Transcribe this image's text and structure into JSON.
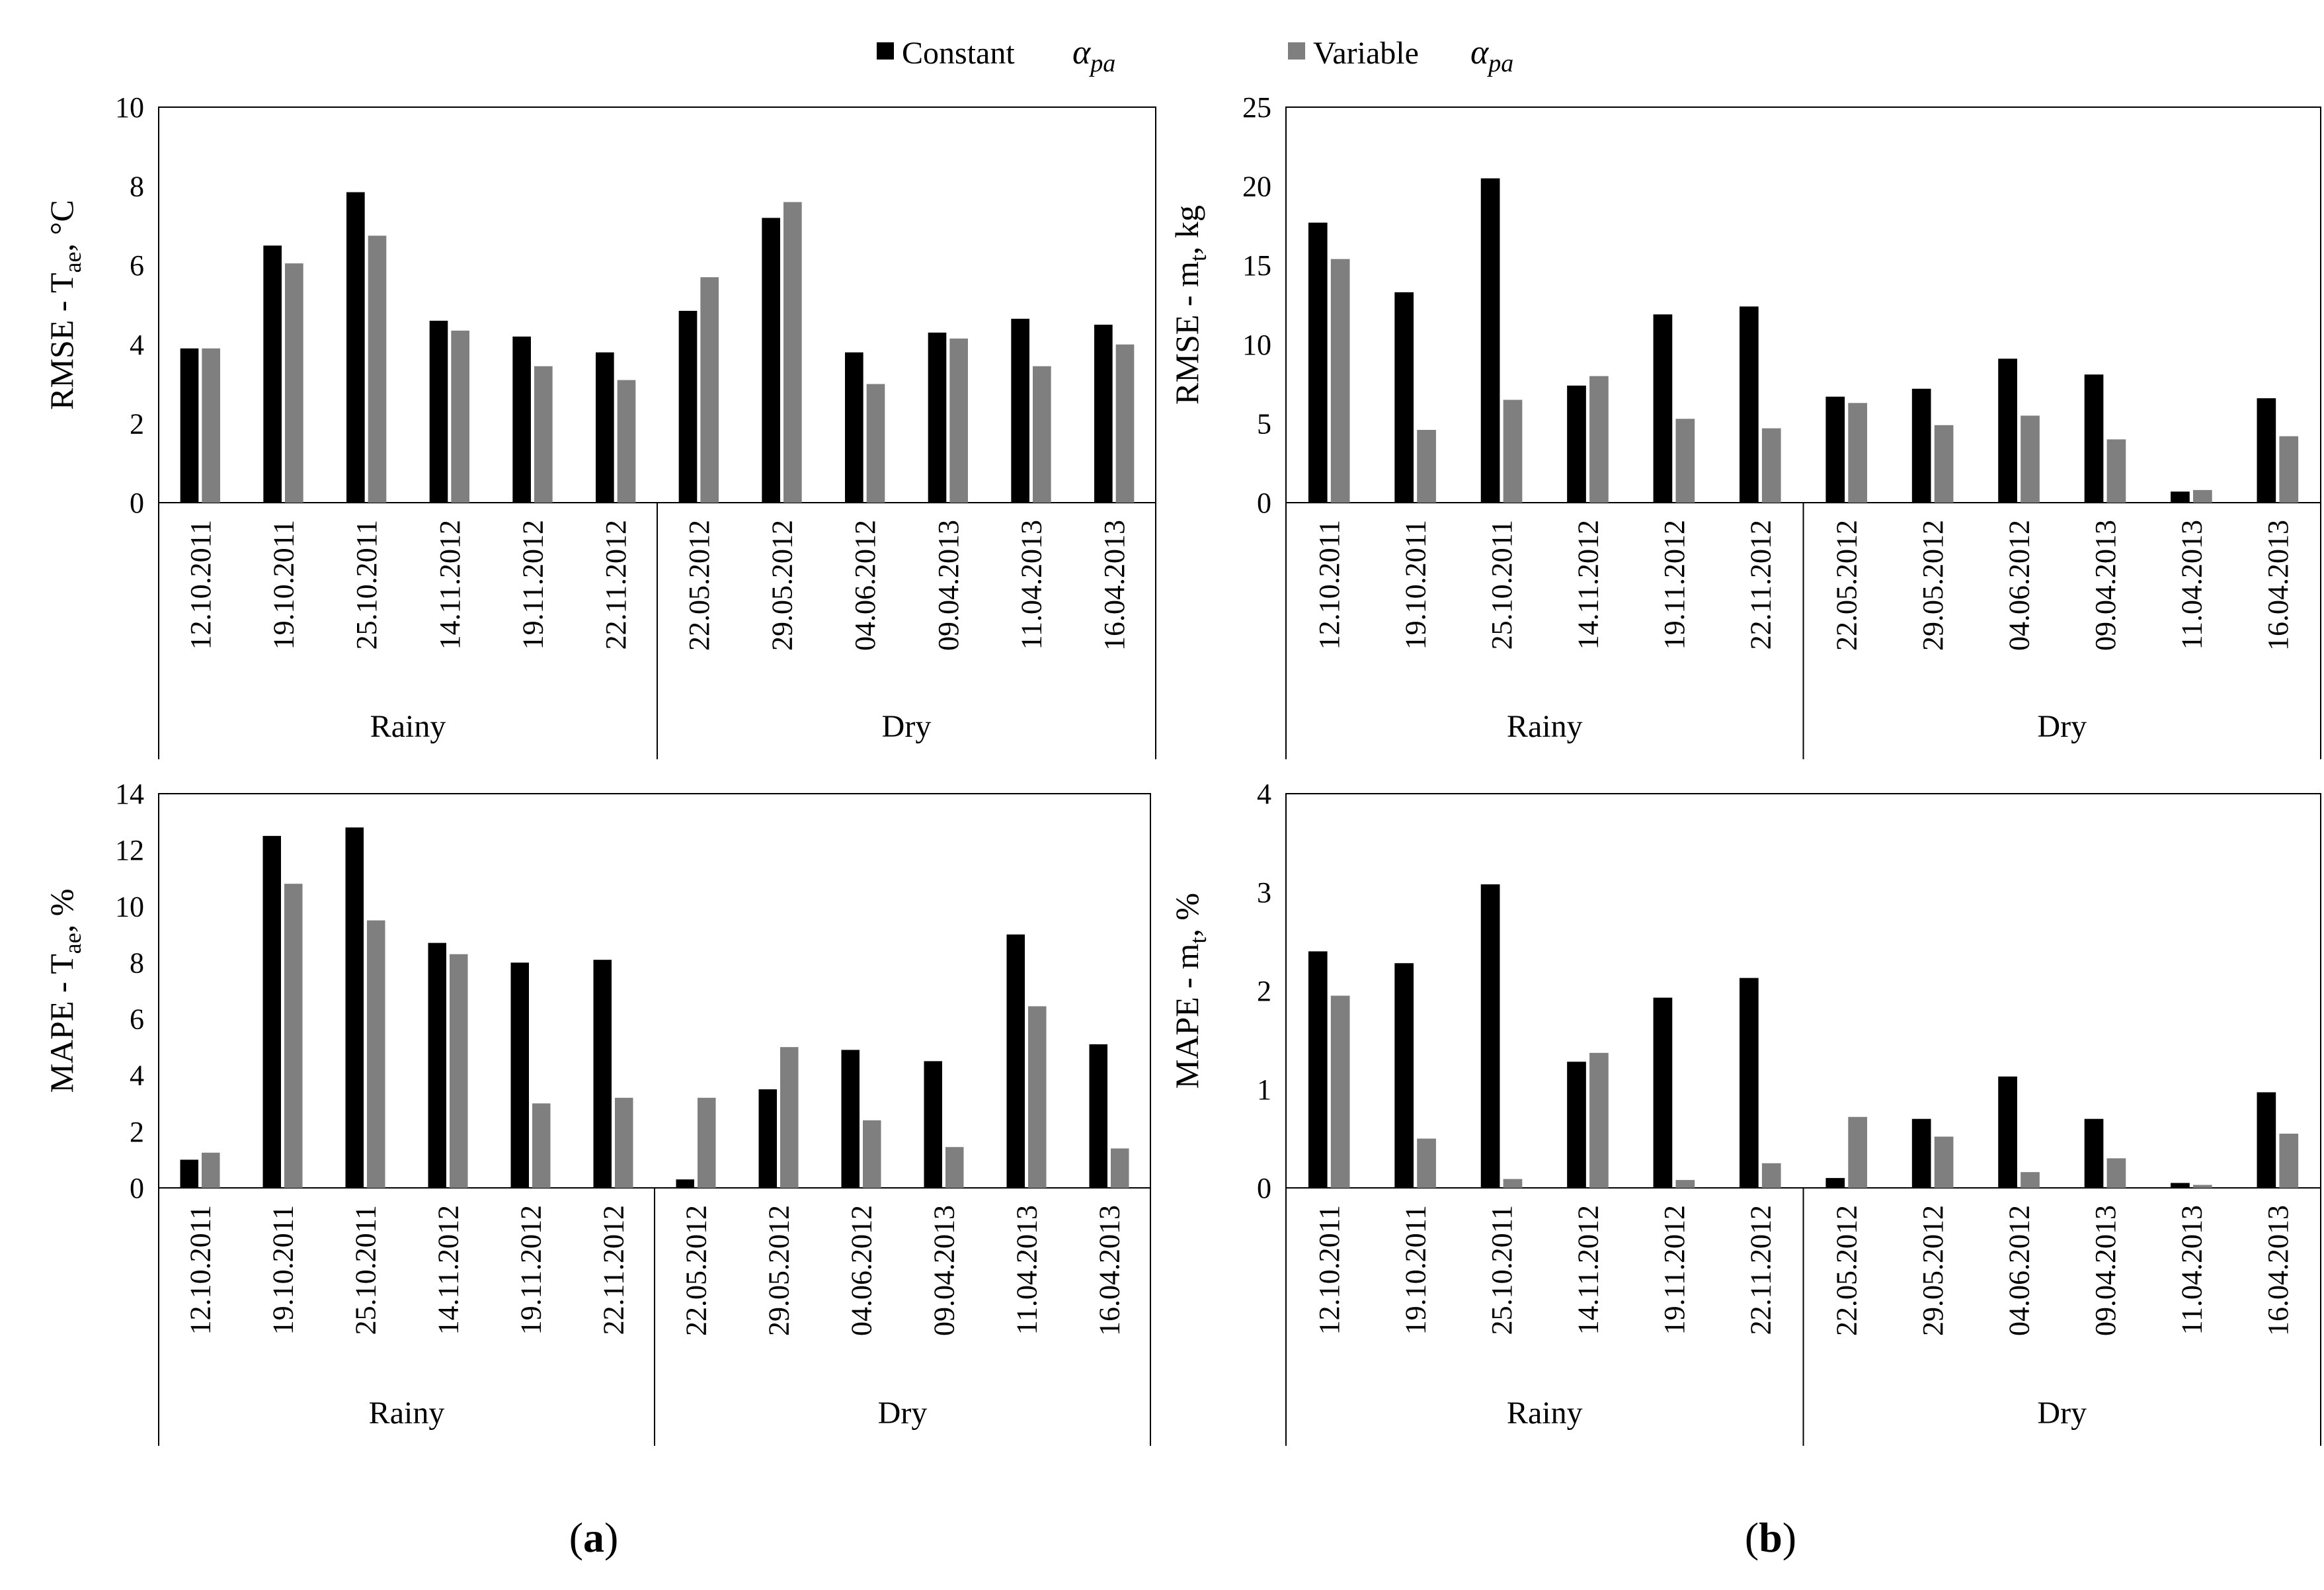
{
  "figure": {
    "legend": {
      "series": [
        {
          "label": "Constant",
          "symbol": "α",
          "subscript": "pa",
          "color": "#000000"
        },
        {
          "label": "Variable",
          "symbol": "α",
          "subscript": "pa",
          "color": "#7f7f7f"
        }
      ]
    },
    "panel_labels": [
      {
        "open": "(",
        "letter": "a",
        "close": ")"
      },
      {
        "open": "(",
        "letter": "b",
        "close": ")"
      }
    ]
  },
  "chart_data": [
    {
      "type": "bar",
      "id": "rmse-tae",
      "ylabel": {
        "main": "RMSE - T",
        "sub": "ae",
        "rest": ", °C"
      },
      "ylim": [
        0,
        10
      ],
      "yticks": [
        0,
        2,
        4,
        6,
        8,
        10
      ],
      "categories": [
        "12.10.2011",
        "19.10.2011",
        "25.10.2011",
        "14.11.2012",
        "19.11.2012",
        "22.11.2012",
        "22.05.2012",
        "29.05.2012",
        "04.06.2012",
        "09.04.2013",
        "11.04.2013",
        "16.04.2013"
      ],
      "groups": [
        {
          "label": "Rainy",
          "count": 6
        },
        {
          "label": "Dry",
          "count": 6
        }
      ],
      "series": [
        {
          "name": "Constant",
          "values": [
            3.9,
            6.5,
            7.85,
            4.6,
            4.2,
            3.8,
            4.85,
            7.2,
            3.8,
            4.3,
            4.65,
            4.5
          ]
        },
        {
          "name": "Variable",
          "values": [
            3.9,
            6.05,
            6.75,
            4.35,
            3.45,
            3.1,
            5.7,
            7.6,
            3.0,
            4.15,
            3.45,
            4.0
          ]
        }
      ]
    },
    {
      "type": "bar",
      "id": "rmse-mt",
      "ylabel": {
        "main": "RMSE - m",
        "sub": "t",
        "rest": ", kg"
      },
      "ylim": [
        0,
        25
      ],
      "yticks": [
        0,
        5,
        10,
        15,
        20,
        25
      ],
      "categories": [
        "12.10.2011",
        "19.10.2011",
        "25.10.2011",
        "14.11.2012",
        "19.11.2012",
        "22.11.2012",
        "22.05.2012",
        "29.05.2012",
        "04.06.2012",
        "09.04.2013",
        "11.04.2013",
        "16.04.2013"
      ],
      "groups": [
        {
          "label": "Rainy",
          "count": 6
        },
        {
          "label": "Dry",
          "count": 6
        }
      ],
      "series": [
        {
          "name": "Constant",
          "values": [
            17.7,
            13.3,
            20.5,
            7.4,
            11.9,
            12.4,
            6.7,
            7.2,
            9.1,
            8.1,
            0.7,
            6.6
          ]
        },
        {
          "name": "Variable",
          "values": [
            15.4,
            4.6,
            6.5,
            8.0,
            5.3,
            4.7,
            6.3,
            4.9,
            5.5,
            4.0,
            0.8,
            4.2
          ]
        }
      ]
    },
    {
      "type": "bar",
      "id": "mape-tae",
      "ylabel": {
        "main": "MAPE - T",
        "sub": "ae",
        "rest": ", %"
      },
      "ylim": [
        0,
        14
      ],
      "yticks": [
        0,
        2,
        4,
        6,
        8,
        10,
        12,
        14
      ],
      "categories": [
        "12.10.2011",
        "19.10.2011",
        "25.10.2011",
        "14.11.2012",
        "19.11.2012",
        "22.11.2012",
        "22.05.2012",
        "29.05.2012",
        "04.06.2012",
        "09.04.2013",
        "11.04.2013",
        "16.04.2013"
      ],
      "groups": [
        {
          "label": "Rainy",
          "count": 6
        },
        {
          "label": "Dry",
          "count": 6
        }
      ],
      "series": [
        {
          "name": "Constant",
          "values": [
            1.0,
            12.5,
            12.8,
            8.7,
            8.0,
            8.1,
            0.3,
            3.5,
            4.9,
            4.5,
            9.0,
            5.1
          ]
        },
        {
          "name": "Variable",
          "values": [
            1.25,
            10.8,
            9.5,
            8.3,
            3.0,
            3.2,
            3.2,
            5.0,
            2.4,
            1.45,
            6.45,
            1.4
          ]
        }
      ]
    },
    {
      "type": "bar",
      "id": "mape-mt",
      "ylabel": {
        "main": "MAPE - m",
        "sub": "t",
        "rest": ", %"
      },
      "ylim": [
        0,
        4
      ],
      "yticks": [
        0,
        1,
        2,
        3,
        4
      ],
      "categories": [
        "12.10.2011",
        "19.10.2011",
        "25.10.2011",
        "14.11.2012",
        "19.11.2012",
        "22.11.2012",
        "22.05.2012",
        "29.05.2012",
        "04.06.2012",
        "09.04.2013",
        "11.04.2013",
        "16.04.2013"
      ],
      "groups": [
        {
          "label": "Rainy",
          "count": 6
        },
        {
          "label": "Dry",
          "count": 6
        }
      ],
      "series": [
        {
          "name": "Constant",
          "values": [
            2.4,
            2.28,
            3.08,
            1.28,
            1.93,
            2.13,
            0.1,
            0.7,
            1.13,
            0.7,
            0.05,
            0.97
          ]
        },
        {
          "name": "Variable",
          "values": [
            1.95,
            0.5,
            0.09,
            1.37,
            0.08,
            0.25,
            0.72,
            0.52,
            0.16,
            0.3,
            0.03,
            0.55
          ]
        }
      ]
    }
  ]
}
